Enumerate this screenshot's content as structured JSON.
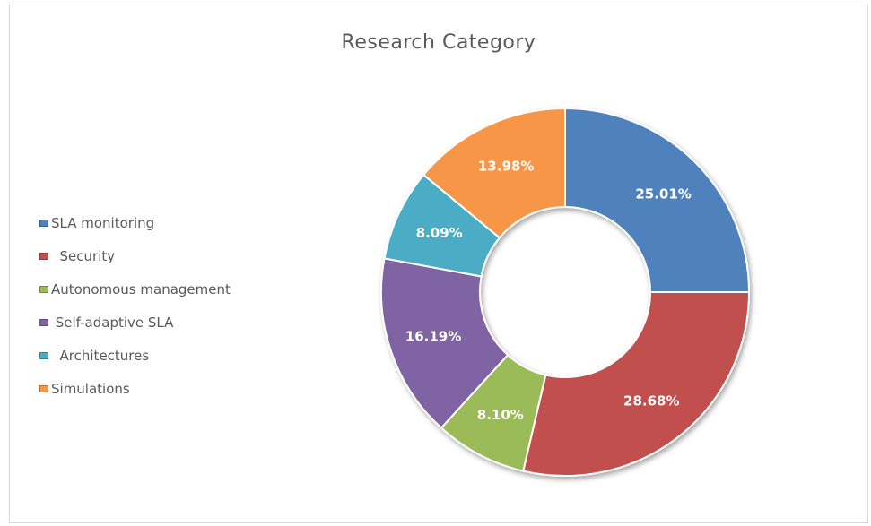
{
  "chart_data": {
    "type": "pie",
    "subtype": "donut",
    "title": "Research Category",
    "legend_position": "left",
    "slices": [
      {
        "label": "SLA monitoring",
        "value": 25.01,
        "display": "25.01%",
        "color": "#4f81bd"
      },
      {
        "label": "Security",
        "value": 28.68,
        "display": "28.68%",
        "color": "#c0504d"
      },
      {
        "label": "Autonomous management",
        "value": 8.1,
        "display": "8.10%",
        "color": "#9bbb59"
      },
      {
        "label": "Self-adaptive SLA",
        "value": 16.19,
        "display": "16.19%",
        "color": "#8064a2"
      },
      {
        "label": "Architectures",
        "value": 8.09,
        "display": "8.09%",
        "color": "#4bacc6"
      },
      {
        "label": "Simulations",
        "value": 13.98,
        "display": "13.98%",
        "color": "#f79646"
      }
    ]
  },
  "legend": {
    "items": [
      {
        "label": "SLA monitoring",
        "color": "#4f81bd"
      },
      {
        "label": "  Security",
        "color": "#c0504d"
      },
      {
        "label": "Autonomous management",
        "color": "#9bbb59"
      },
      {
        "label": " Self-adaptive SLA",
        "color": "#8064a2"
      },
      {
        "label": "  Architectures",
        "color": "#4bacc6"
      },
      {
        "label": "Simulations",
        "color": "#f79646"
      }
    ]
  }
}
